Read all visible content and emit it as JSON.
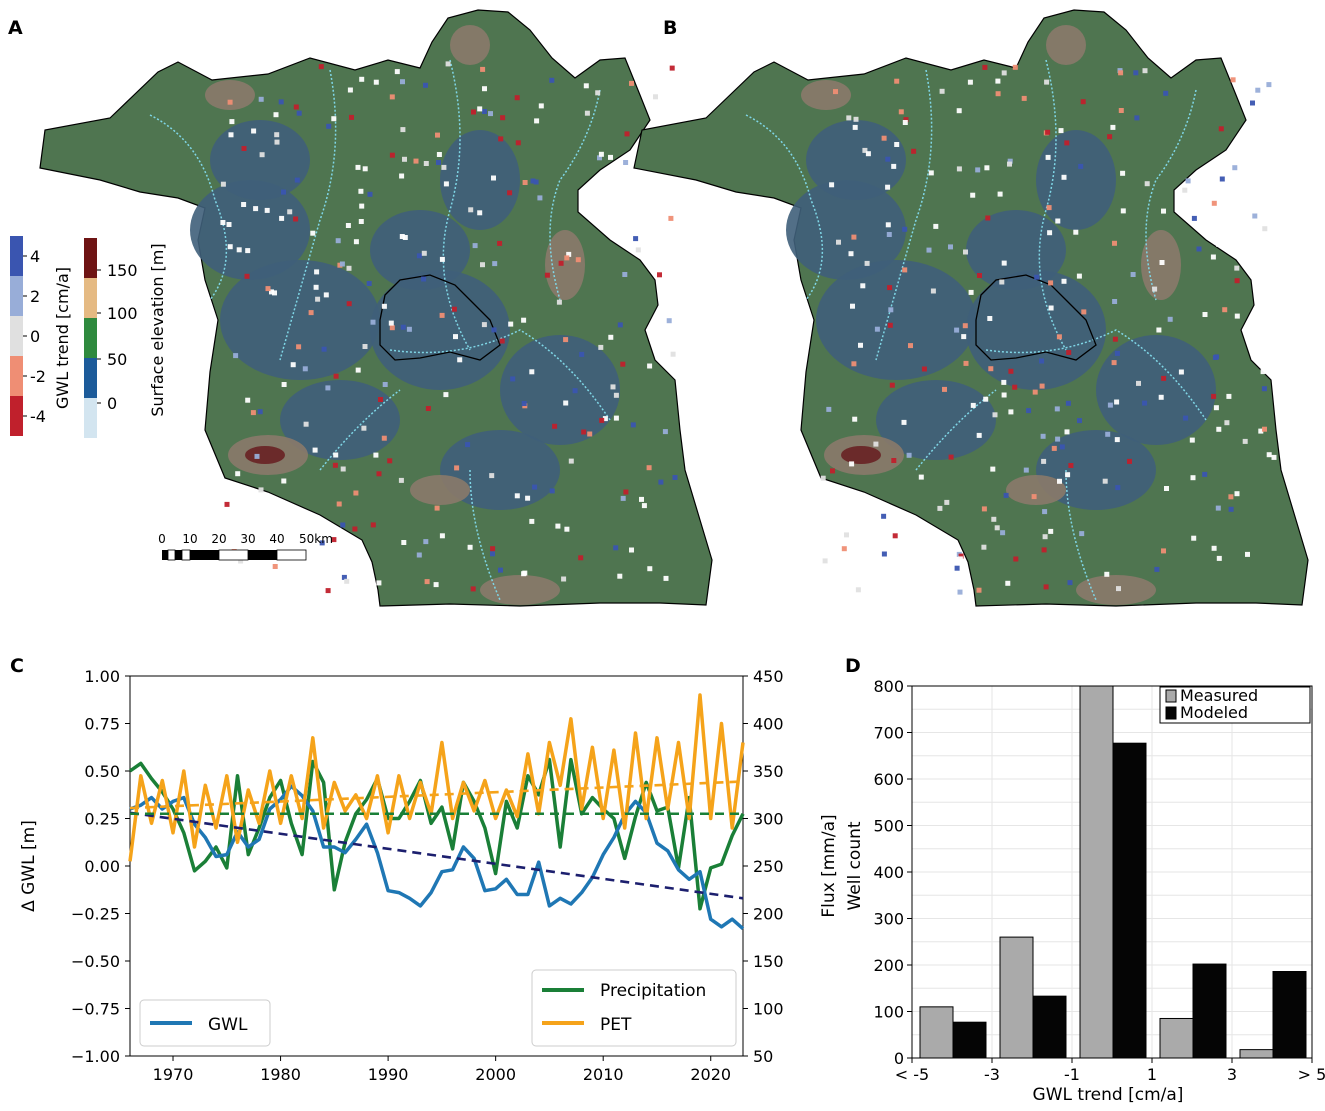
{
  "panels": {
    "a": "A",
    "b": "B",
    "c": "C",
    "d": "D"
  },
  "colors": {
    "lowland": "#3f5f7a",
    "midland": "#4f7550",
    "upland": "#8a7a6a",
    "peak": "#6b2a2a",
    "river": "#7fd6e6",
    "border": "#000000",
    "gwl": "#1f77b4",
    "precip": "#1a7f37",
    "pet": "#f5a31a",
    "gwl_trend": "#1c1f6e",
    "measured": "#aaaaaa",
    "modeled": "#050505"
  },
  "map_legend": {
    "gwl_label": "GWL trend [cm/a]",
    "gwl_ticks": [
      "4",
      "2",
      "0",
      "-2",
      "-4"
    ],
    "gwl_colors": [
      "#3a55b0",
      "#98add8",
      "#e0e0e0",
      "#ef8e74",
      "#c0202c"
    ],
    "elev_label": "Surface elevation [m]",
    "elev_ticks": [
      "150",
      "100",
      "50",
      "0"
    ],
    "elev_colors": [
      "#6e1414",
      "#e5ba83",
      "#2f8a3e",
      "#1c5b9a",
      "#d3e5f0"
    ]
  },
  "scale_bar": {
    "ticks": [
      "0",
      "10",
      "20",
      "30",
      "40",
      "50km"
    ]
  },
  "chart_data": [
    {
      "type": "line",
      "panel": "C",
      "xlim": [
        1966,
        2023
      ],
      "x_ticks": [
        "1970",
        "1980",
        "1990",
        "2000",
        "2010",
        "2020"
      ],
      "ylabel": "Δ GWL [m]",
      "ylim": [
        -1.0,
        1.0
      ],
      "y_ticks": [
        "1.00",
        "0.75",
        "0.50",
        "0.25",
        "0.00",
        "−0.25",
        "−0.50",
        "−0.75",
        "−1.00"
      ],
      "y2label": "Flux [mm/a]",
      "y2lim": [
        50,
        450
      ],
      "y2_ticks": [
        "450",
        "400",
        "350",
        "300",
        "250",
        "200",
        "150",
        "100",
        "50"
      ],
      "x": [
        1966,
        1967,
        1968,
        1969,
        1970,
        1971,
        1972,
        1973,
        1974,
        1975,
        1976,
        1977,
        1978,
        1979,
        1980,
        1981,
        1982,
        1983,
        1984,
        1985,
        1986,
        1987,
        1988,
        1989,
        1990,
        1991,
        1992,
        1993,
        1994,
        1995,
        1996,
        1997,
        1998,
        1999,
        2000,
        2001,
        2002,
        2003,
        2004,
        2005,
        2006,
        2007,
        2008,
        2009,
        2010,
        2011,
        2012,
        2013,
        2014,
        2015,
        2016,
        2017,
        2018,
        2019,
        2020,
        2021,
        2022,
        2023
      ],
      "series": [
        {
          "name": "GWL",
          "axis": "left",
          "values": [
            0.3,
            0.32,
            0.36,
            0.3,
            0.34,
            0.36,
            0.22,
            0.15,
            0.05,
            0.06,
            0.18,
            0.1,
            0.14,
            0.3,
            0.35,
            0.42,
            0.37,
            0.29,
            0.1,
            0.1,
            0.07,
            0.14,
            0.22,
            0.07,
            -0.13,
            -0.14,
            -0.17,
            -0.21,
            -0.14,
            -0.03,
            -0.02,
            0.1,
            0.04,
            -0.13,
            -0.12,
            -0.07,
            -0.15,
            -0.15,
            0.02,
            -0.21,
            -0.17,
            -0.2,
            -0.14,
            -0.06,
            0.06,
            0.15,
            0.27,
            0.34,
            0.28,
            0.12,
            0.08,
            -0.02,
            -0.07,
            -0.03,
            -0.28,
            -0.32,
            -0.28,
            -0.33
          ]
        },
        {
          "name": "Precipitation",
          "axis": "right",
          "values": [
            350,
            358,
            342,
            328,
            310,
            285,
            245,
            255,
            270,
            248,
            345,
            262,
            290,
            322,
            340,
            295,
            262,
            360,
            338,
            225,
            275,
            305,
            320,
            342,
            300,
            300,
            318,
            340,
            295,
            312,
            268,
            338,
            318,
            290,
            242,
            318,
            290,
            345,
            325,
            362,
            270,
            362,
            305,
            322,
            310,
            300,
            258,
            302,
            338,
            308,
            312,
            248,
            322,
            205,
            248,
            252,
            282,
            305
          ]
        },
        {
          "name": "PET",
          "axis": "right",
          "values": [
            255,
            345,
            295,
            340,
            285,
            350,
            270,
            335,
            290,
            345,
            275,
            330,
            295,
            350,
            295,
            345,
            300,
            385,
            290,
            338,
            308,
            325,
            300,
            345,
            285,
            345,
            300,
            338,
            305,
            380,
            300,
            338,
            308,
            340,
            300,
            330,
            302,
            368,
            305,
            380,
            335,
            405,
            310,
            375,
            300,
            372,
            290,
            390,
            300,
            385,
            310,
            380,
            300,
            430,
            300,
            400,
            290,
            380
          ]
        }
      ],
      "trends": [
        {
          "name": "GWL trend",
          "axis": "left",
          "x": [
            1966,
            2023
          ],
          "values": [
            0.28,
            -0.17
          ]
        },
        {
          "name": "Precipitation trend",
          "axis": "right",
          "x": [
            1966,
            2023
          ],
          "values": [
            305,
            305
          ]
        },
        {
          "name": "PET trend",
          "axis": "right",
          "x": [
            1966,
            2023
          ],
          "values": [
            311,
            339
          ]
        }
      ],
      "legend": {
        "left": [
          "GWL"
        ],
        "right": [
          "Precipitation",
          "PET"
        ]
      }
    },
    {
      "type": "bar",
      "panel": "D",
      "categories": [
        "< -5",
        "-5 to -1",
        "-1 to 1",
        "1 to 5",
        "> 5"
      ],
      "x_ticks": [
        "< -5",
        "-3",
        "-1",
        "1",
        "3",
        "> 5"
      ],
      "xlabel": "GWL trend [cm/a]",
      "ylabel": "Well count",
      "ylim": [
        0,
        800
      ],
      "y_ticks": [
        "800",
        "700",
        "600",
        "500",
        "400",
        "300",
        "200",
        "100",
        "0"
      ],
      "grid": true,
      "legend_position": "top-right",
      "series": [
        {
          "name": "Measured",
          "values": [
            110,
            260,
            800,
            85,
            18
          ]
        },
        {
          "name": "Modeled",
          "values": [
            77,
            133,
            677,
            202,
            186
          ]
        }
      ]
    }
  ]
}
